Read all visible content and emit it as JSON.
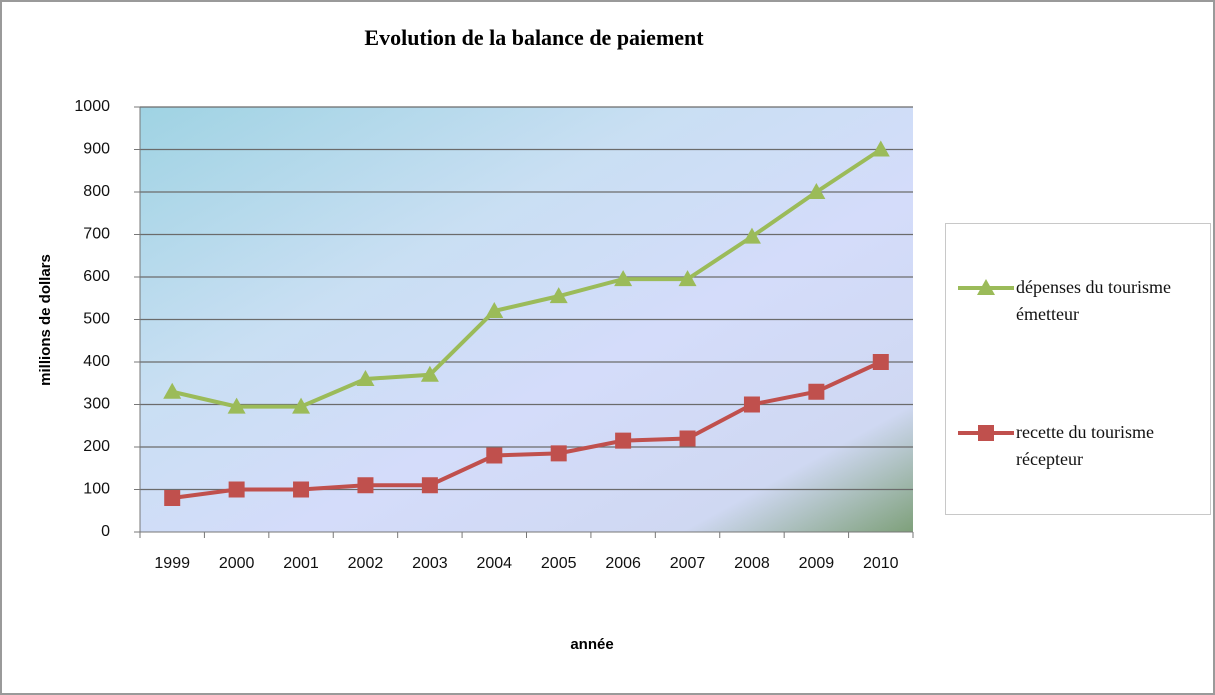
{
  "chart_data": {
    "type": "line",
    "title": "Evolution de la balance de paiement",
    "xlabel": "année",
    "ylabel": "millions de dollars",
    "categories": [
      "1999",
      "2000",
      "2001",
      "2002",
      "2003",
      "2004",
      "2005",
      "2006",
      "2007",
      "2008",
      "2009",
      "2010"
    ],
    "series": [
      {
        "name": "dépenses du tourisme émetteur",
        "color": "#9bbb59",
        "marker": "triangle",
        "values": [
          330,
          295,
          295,
          360,
          370,
          520,
          555,
          595,
          595,
          695,
          800,
          900
        ]
      },
      {
        "name": "recette du tourisme récepteur",
        "color": "#c0504d",
        "marker": "square",
        "values": [
          80,
          100,
          100,
          110,
          110,
          180,
          185,
          215,
          220,
          300,
          330,
          400
        ]
      }
    ],
    "ylim": [
      0,
      1000
    ],
    "yticks": [
      0,
      100,
      200,
      300,
      400,
      500,
      600,
      700,
      800,
      900,
      1000
    ],
    "grid": true,
    "legend": "right"
  }
}
